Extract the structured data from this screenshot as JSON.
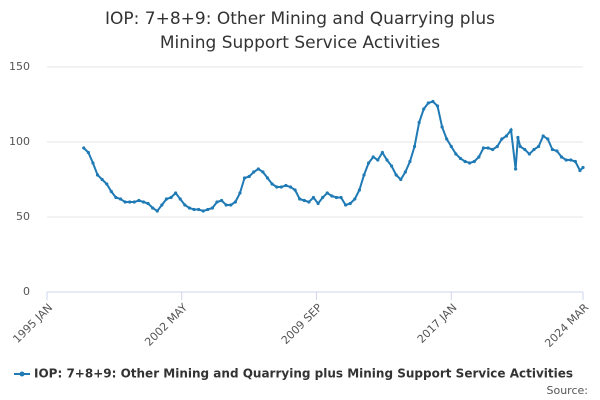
{
  "chart_data": {
    "type": "line",
    "title": "IOP: 7+8+9: Other Mining and Quarrying plus Mining Support Service Activities",
    "source": "Source:",
    "x": [
      1997.0,
      1997.25,
      1997.5,
      1997.75,
      1998.0,
      1998.25,
      1998.5,
      1998.75,
      1999.0,
      1999.25,
      1999.5,
      1999.75,
      2000.0,
      2000.25,
      2000.5,
      2000.75,
      2001.0,
      2001.25,
      2001.5,
      2001.75,
      2002.0,
      2002.25,
      2002.5,
      2002.75,
      2003.0,
      2003.25,
      2003.5,
      2003.75,
      2004.0,
      2004.25,
      2004.5,
      2004.75,
      2005.0,
      2005.25,
      2005.5,
      2005.75,
      2006.0,
      2006.25,
      2006.5,
      2006.75,
      2007.0,
      2007.25,
      2007.5,
      2007.75,
      2008.0,
      2008.25,
      2008.5,
      2008.75,
      2009.0,
      2009.25,
      2009.5,
      2009.75,
      2010.0,
      2010.25,
      2010.5,
      2010.75,
      2011.0,
      2011.25,
      2011.5,
      2011.75,
      2012.0,
      2012.25,
      2012.5,
      2012.75,
      2013.0,
      2013.25,
      2013.5,
      2013.75,
      2014.0,
      2014.25,
      2014.5,
      2014.75,
      2015.0,
      2015.25,
      2015.5,
      2015.75,
      2016.0,
      2016.25,
      2016.5,
      2016.75,
      2017.0,
      2017.25,
      2017.5,
      2017.75,
      2018.0,
      2018.25,
      2018.5,
      2018.75,
      2019.0,
      2019.25,
      2019.5,
      2019.75,
      2020.0,
      2020.25,
      2020.5,
      2020.625,
      2020.75,
      2021.0,
      2021.25,
      2021.5,
      2021.75,
      2022.0,
      2022.25,
      2022.5,
      2022.75,
      2023.0,
      2023.25,
      2023.5,
      2023.75,
      2024.0,
      2024.167
    ],
    "series": [
      {
        "name": "IOP: 7+8+9: Other Mining and Quarrying plus Mining Support Service Activities",
        "color": "#1f7ab5",
        "values": [
          96,
          93,
          86,
          78,
          75,
          72,
          67,
          63,
          62,
          60,
          60,
          60,
          61,
          60,
          59,
          56,
          54,
          58,
          62,
          63,
          66,
          62,
          58,
          56,
          55,
          55,
          54,
          55,
          56,
          60,
          61,
          58,
          58,
          60,
          66,
          76,
          77,
          80,
          82,
          80,
          76,
          72,
          70,
          70,
          71,
          70,
          68,
          62,
          61,
          60,
          63,
          59,
          63,
          66,
          64,
          63,
          63,
          58,
          59,
          62,
          68,
          78,
          86,
          90,
          88,
          93,
          88,
          84,
          78,
          75,
          80,
          87,
          97,
          113,
          122,
          126,
          127,
          124,
          110,
          102,
          97,
          92,
          89,
          87,
          86,
          87,
          90,
          96,
          96,
          95,
          97,
          102,
          104,
          108,
          82,
          103,
          97,
          95,
          92,
          95,
          97,
          104,
          102,
          95,
          94,
          90,
          88,
          88,
          87,
          81,
          83
        ]
      }
    ],
    "xlim": [
      1995.0,
      2024.167
    ],
    "xticks": [
      {
        "value": 1995.0,
        "label": "1995 JAN"
      },
      {
        "value": 2002.333,
        "label": "2002 MAY"
      },
      {
        "value": 2009.667,
        "label": "2009 SEP"
      },
      {
        "value": 2017.0,
        "label": "2017 JAN"
      },
      {
        "value": 2024.167,
        "label": "2024 MAR"
      }
    ],
    "ylim": [
      0,
      150
    ],
    "yticks": [
      0,
      50,
      100,
      150
    ],
    "grid": true
  }
}
